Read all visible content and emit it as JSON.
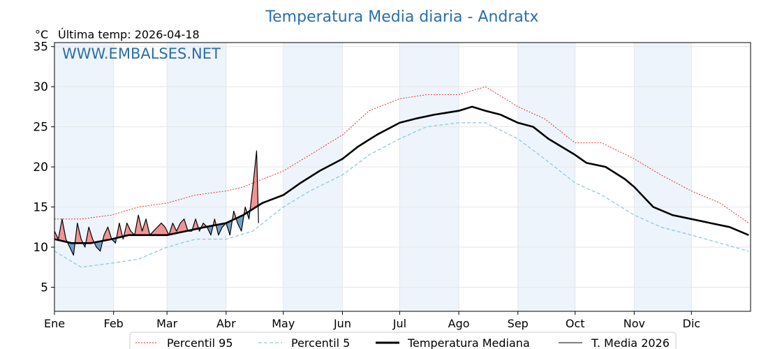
{
  "chart_data": {
    "type": "line",
    "title": "Temperatura Media diaria - Andratx",
    "unit_label": "°C",
    "last_temp_label": "Última temp: 2026-04-18",
    "watermark": "WWW.EMBALSES.NET",
    "ylim": [
      2,
      35.5
    ],
    "yticks": [
      5,
      10,
      15,
      20,
      25,
      30,
      35
    ],
    "months": [
      "Ene",
      "Feb",
      "Mar",
      "Abr",
      "May",
      "Jun",
      "Jul",
      "Ago",
      "Sep",
      "Oct",
      "Nov",
      "Dic"
    ],
    "grid": true,
    "legend_position": "bottom",
    "colors": {
      "p95": "#e41a1c",
      "p5": "#8ec9dc",
      "median": "#000000",
      "current": "#000000",
      "above_fill": "#f08080",
      "below_fill": "#5b8db8",
      "band": "#eef4fb",
      "title": "#2a6fa8"
    },
    "series": [
      {
        "name": "Percentil 95",
        "key": "p95",
        "x": [
          1,
          15,
          31,
          45,
          60,
          75,
          91,
          100,
          105,
          121,
          135,
          152,
          166,
          182,
          196,
          213,
          227,
          244,
          258,
          274,
          288,
          305,
          319,
          335,
          350,
          365
        ],
        "y": [
          13.5,
          13.5,
          14.0,
          15.0,
          15.5,
          16.5,
          17.0,
          17.5,
          18.0,
          19.5,
          21.5,
          24.0,
          27.0,
          28.5,
          29.0,
          29.0,
          30.0,
          27.5,
          26.0,
          23.0,
          23.0,
          21.0,
          19.0,
          17.0,
          15.5,
          13.0
        ]
      },
      {
        "name": "Percentil 5",
        "key": "p5",
        "x": [
          1,
          15,
          31,
          45,
          60,
          75,
          91,
          105,
          121,
          135,
          152,
          166,
          182,
          196,
          213,
          227,
          244,
          258,
          274,
          288,
          305,
          319,
          335,
          350,
          365
        ],
        "y": [
          9.5,
          7.5,
          8.0,
          8.5,
          10.0,
          11.0,
          11.0,
          12.0,
          15.0,
          17.0,
          19.0,
          21.5,
          23.5,
          25.0,
          25.5,
          25.5,
          23.5,
          21.0,
          18.0,
          16.5,
          14.0,
          12.5,
          11.5,
          10.5,
          9.5
        ]
      },
      {
        "name": "Temperatura Mediana",
        "key": "median",
        "x": [
          1,
          10,
          20,
          31,
          40,
          50,
          60,
          70,
          80,
          91,
          100,
          110,
          121,
          130,
          140,
          152,
          160,
          170,
          182,
          190,
          200,
          213,
          220,
          227,
          235,
          244,
          252,
          260,
          274,
          280,
          290,
          300,
          305,
          315,
          325,
          335,
          345,
          355,
          365
        ],
        "y": [
          11.0,
          10.5,
          10.5,
          11.0,
          11.5,
          11.5,
          11.5,
          12.0,
          12.5,
          13.0,
          14.0,
          15.5,
          16.5,
          18.0,
          19.5,
          21.0,
          22.5,
          24.0,
          25.5,
          26.0,
          26.5,
          27.0,
          27.5,
          27.0,
          26.5,
          25.5,
          25.0,
          23.5,
          21.5,
          20.5,
          20.0,
          18.5,
          17.5,
          15.0,
          14.0,
          13.5,
          13.0,
          12.5,
          11.5
        ]
      },
      {
        "name": "T. Media 2026",
        "key": "current",
        "x": [
          1,
          3,
          5,
          7,
          9,
          11,
          13,
          15,
          17,
          19,
          21,
          23,
          25,
          27,
          29,
          31,
          33,
          35,
          37,
          39,
          41,
          43,
          45,
          47,
          49,
          51,
          53,
          55,
          57,
          59,
          61,
          63,
          65,
          67,
          69,
          71,
          73,
          75,
          77,
          79,
          81,
          83,
          85,
          87,
          89,
          91,
          93,
          95,
          97,
          99,
          101,
          103,
          105,
          107,
          108
        ],
        "y": [
          12.0,
          11.0,
          13.5,
          11.0,
          10.0,
          9.0,
          13.0,
          11.0,
          10.0,
          12.5,
          11.0,
          10.0,
          9.5,
          11.5,
          12.5,
          11.0,
          10.5,
          13.0,
          11.0,
          13.0,
          12.0,
          11.5,
          14.0,
          12.0,
          13.5,
          11.5,
          12.0,
          12.5,
          13.0,
          12.5,
          11.5,
          13.0,
          12.0,
          13.0,
          13.5,
          12.0,
          12.0,
          13.5,
          12.0,
          13.0,
          12.5,
          11.5,
          13.5,
          11.5,
          12.5,
          13.0,
          11.5,
          14.5,
          13.0,
          12.0,
          15.0,
          13.5,
          17.5,
          22.0,
          13.0
        ]
      }
    ],
    "legend": [
      "Percentil 95",
      "Percentil 5",
      "Temperatura Mediana",
      "T. Media 2026"
    ]
  }
}
